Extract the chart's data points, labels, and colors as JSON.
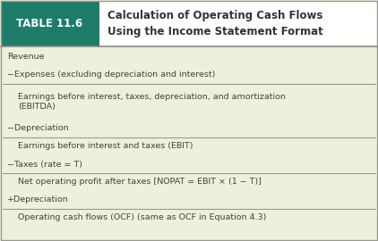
{
  "table_label": "TABLE 11.6",
  "title_line1": "Calculation of Operating Cash Flows",
  "title_line2": "Using the Income Statement Format",
  "header_bg": "#1e7d6a",
  "header_text_color": "#ffffff",
  "body_bg": "#eef0dc",
  "header_title_bg": "#ffffff",
  "line_color": "#9a9a88",
  "rows": [
    {
      "text": "Revenue",
      "indent": false,
      "line_below": false
    },
    {
      "text": "−Expenses (excluding depreciation and interest)",
      "indent": false,
      "line_below": true
    },
    {
      "text": "Earnings before interest, taxes, depreciation, and amortization\n(EBITDA)",
      "indent": true,
      "line_below": false
    },
    {
      "text": "−Depreciation",
      "indent": false,
      "line_below": true
    },
    {
      "text": "Earnings before interest and taxes (EBIT)",
      "indent": true,
      "line_below": false
    },
    {
      "text": "−Taxes (rate = T)",
      "indent": false,
      "line_below": true
    },
    {
      "text": "Net operating profit after taxes [NOPAT = EBIT × (1 − T)]",
      "indent": true,
      "line_below": false
    },
    {
      "text": "+Depreciation",
      "indent": false,
      "line_below": true
    },
    {
      "text": "Operating cash flows (OCF) (same as OCF in Equation 4.3)",
      "indent": true,
      "line_below": false
    }
  ],
  "figw": 4.22,
  "figh": 2.7,
  "dpi": 100
}
